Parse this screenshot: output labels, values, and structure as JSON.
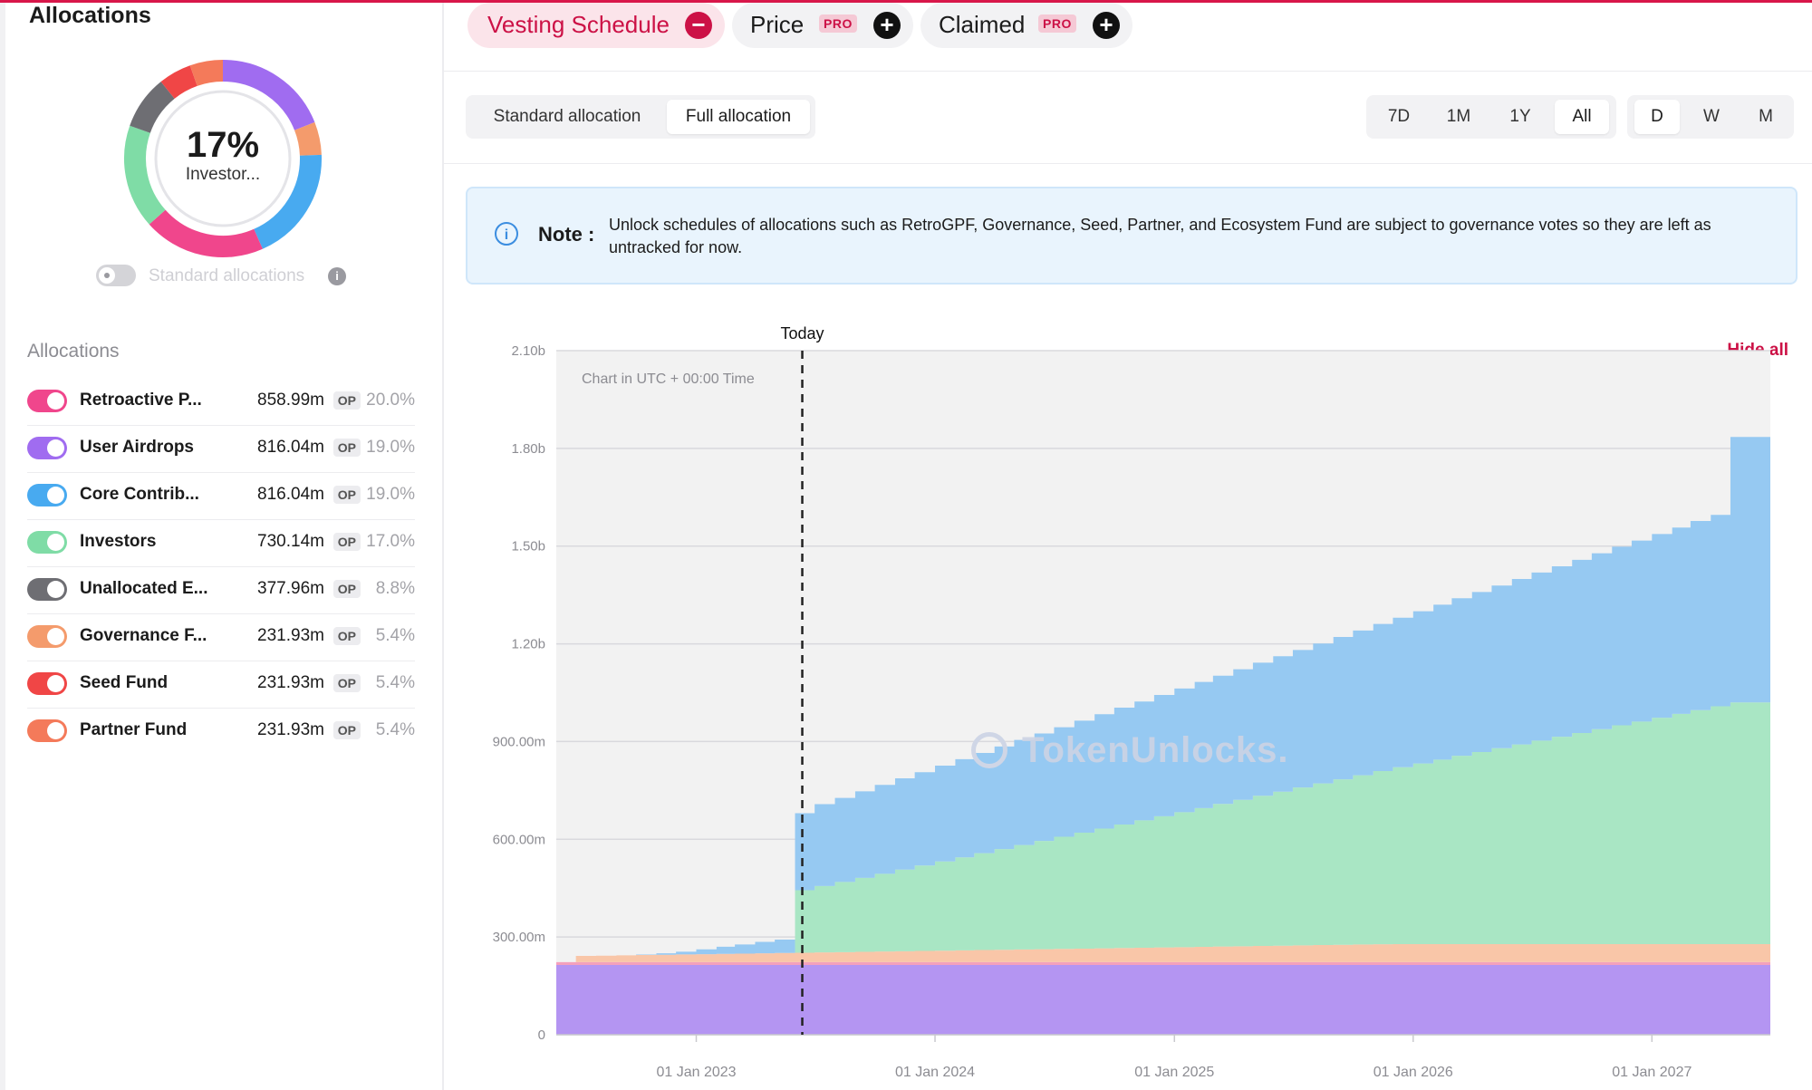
{
  "sidebar": {
    "title": "Allocations",
    "donut": {
      "percent": "17%",
      "label": "Investor...",
      "segments": [
        {
          "color": "#a06cf0",
          "value": 19.0
        },
        {
          "color": "#f49b6c",
          "value": 5.4
        },
        {
          "color": "#48aaf0",
          "value": 19.0
        },
        {
          "color": "#f0468c",
          "value": 20.0
        },
        {
          "color": "#7fdca6",
          "value": 17.0
        },
        {
          "color": "#6e6e73",
          "value": 8.8
        },
        {
          "color": "#f04646",
          "value": 5.4
        },
        {
          "color": "#f47a5a",
          "value": 5.4
        }
      ]
    },
    "standard_toggle_label": "Standard allocations",
    "info_icon": "info-icon",
    "list_header": "Allocations",
    "hide_all": "Hide all",
    "items": [
      {
        "name": "Retroactive P...",
        "value": "858.99m",
        "unit": "OP",
        "pct": "20.0%",
        "color": "#f0468c"
      },
      {
        "name": "User Airdrops",
        "value": "816.04m",
        "unit": "OP",
        "pct": "19.0%",
        "color": "#a06cf0"
      },
      {
        "name": "Core Contrib...",
        "value": "816.04m",
        "unit": "OP",
        "pct": "19.0%",
        "color": "#48aaf0"
      },
      {
        "name": "Investors",
        "value": "730.14m",
        "unit": "OP",
        "pct": "17.0%",
        "color": "#7fdca6"
      },
      {
        "name": "Unallocated E...",
        "value": "377.96m",
        "unit": "OP",
        "pct": "8.8%",
        "color": "#6e6e73"
      },
      {
        "name": "Governance F...",
        "value": "231.93m",
        "unit": "OP",
        "pct": "5.4%",
        "color": "#f49b6c"
      },
      {
        "name": "Seed Fund",
        "value": "231.93m",
        "unit": "OP",
        "pct": "5.4%",
        "color": "#f04646"
      },
      {
        "name": "Partner Fund",
        "value": "231.93m",
        "unit": "OP",
        "pct": "5.4%",
        "color": "#f47a5a"
      }
    ]
  },
  "tabs": [
    {
      "label": "Vesting Schedule",
      "active": true,
      "action": "minus"
    },
    {
      "label": "Price",
      "pro": "PRO",
      "action": "plus"
    },
    {
      "label": "Claimed",
      "pro": "PRO",
      "action": "plus"
    }
  ],
  "alloc_mode": {
    "options": [
      "Standard allocation",
      "Full allocation"
    ],
    "selected": "Full allocation"
  },
  "range": {
    "options": [
      "7D",
      "1M",
      "1Y",
      "All"
    ],
    "selected": "All"
  },
  "interval": {
    "options": [
      "D",
      "W",
      "M"
    ],
    "selected": "D"
  },
  "note": {
    "label": "Note :",
    "text": "Unlock schedules of allocations such as RetroGPF, Governance, Seed, Partner, and Ecosystem Fund are subject to governance votes so they are left as untracked for now.",
    "icon": "info-icon"
  },
  "watermark": "TokenUnlocks.",
  "chart_data": {
    "type": "area",
    "annotation": "Chart in UTC + 00:00 Time",
    "today_label": "Today",
    "today_x": "2023-06-01",
    "x_ticks": [
      "01 Jan 2023",
      "01 Jan 2024",
      "01 Jan 2025",
      "01 Jan 2026",
      "01 Jan 2027"
    ],
    "y_ticks": [
      "0",
      "300.00m",
      "600.00m",
      "900.00m",
      "1.20b",
      "1.50b",
      "1.80b",
      "2.10b"
    ],
    "ylim": [
      0,
      2100000000
    ],
    "grid": true,
    "colors": {
      "airdrops": "#b495f2",
      "seed": "#f4a0bc",
      "orange": "#f9c6a8",
      "investors": "#a9e6c4",
      "core": "#96c9f2"
    },
    "x": [
      "2022-06-01",
      "2022-07-01",
      "2022-08-01",
      "2022-09-01",
      "2022-10-01",
      "2022-11-01",
      "2022-12-01",
      "2023-01-01",
      "2023-02-01",
      "2023-03-01",
      "2023-04-01",
      "2023-05-01",
      "2023-06-01",
      "2023-07-01",
      "2023-08-01",
      "2023-09-01",
      "2023-10-01",
      "2023-11-01",
      "2023-12-01",
      "2024-01-01",
      "2024-02-01",
      "2024-03-01",
      "2024-04-01",
      "2024-05-01",
      "2024-06-01",
      "2024-07-01",
      "2024-08-01",
      "2024-09-01",
      "2024-10-01",
      "2024-11-01",
      "2024-12-01",
      "2025-01-01",
      "2025-02-01",
      "2025-03-01",
      "2025-04-01",
      "2025-05-01",
      "2025-06-01",
      "2025-07-01",
      "2025-08-01",
      "2025-09-01",
      "2025-10-01",
      "2025-11-01",
      "2025-12-01",
      "2026-01-01",
      "2026-02-01",
      "2026-03-01",
      "2026-04-01",
      "2026-05-01",
      "2026-06-01",
      "2026-07-01",
      "2026-08-01",
      "2026-09-01",
      "2026-10-01",
      "2026-11-01",
      "2026-12-01",
      "2027-01-01",
      "2027-02-01",
      "2027-03-01",
      "2027-04-01",
      "2027-05-01"
    ],
    "total": [
      215,
      233,
      240,
      243,
      246,
      250,
      255,
      262,
      270,
      277,
      285,
      292,
      680,
      708,
      727,
      747,
      767,
      787,
      806,
      826,
      846,
      865,
      885,
      905,
      925,
      944,
      964,
      984,
      1004,
      1023,
      1043,
      1063,
      1083,
      1102,
      1122,
      1142,
      1162,
      1181,
      1201,
      1221,
      1241,
      1261,
      1280,
      1300,
      1320,
      1340,
      1359,
      1379,
      1399,
      1419,
      1438,
      1458,
      1478,
      1498,
      1517,
      1537,
      1557,
      1577,
      1596,
      1835
    ],
    "series_note": "values in millions; stacked from bottom: airdrops ~214m, seed ~9m, orange band grows to ~55m, investors and core contributors unlock from mid-2023"
  }
}
